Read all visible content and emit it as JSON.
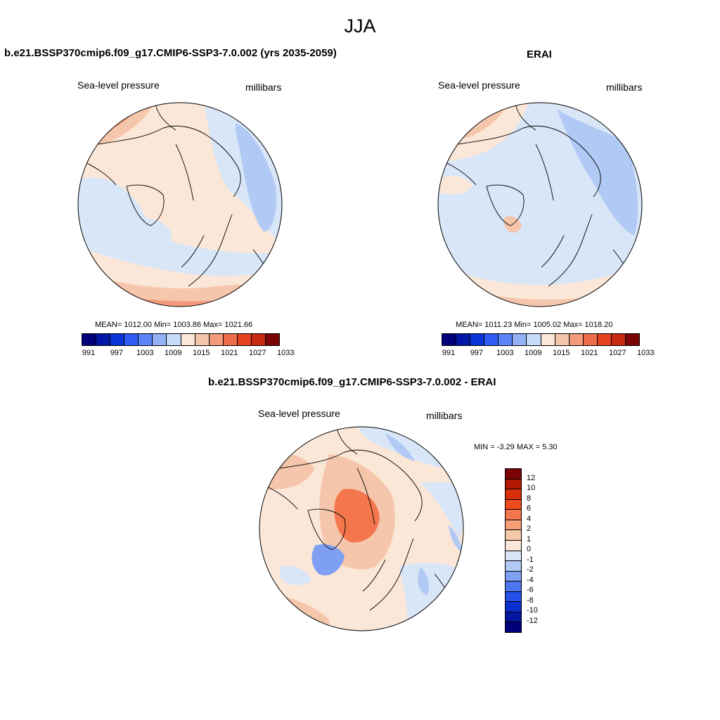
{
  "figure": {
    "season": "JJA",
    "panels": [
      {
        "title": "b.e21.BSSP370cmip6.f09_g17.CMIP6-SSP3-7.0.002 (yrs 2035-2059)",
        "variable": "Sea-level pressure",
        "units": "millibars",
        "stats": "MEAN= 1012.00   Min= 1003.86   Max= 1021.66"
      },
      {
        "title": "ERAI",
        "variable": "Sea-level pressure",
        "units": "millibars",
        "stats": "MEAN= 1011.23   Min= 1005.02   Max= 1018.20"
      },
      {
        "title": "b.e21.BSSP370cmip6.f09_g17.CMIP6-SSP3-7.0.002 - ERAI",
        "variable": "Sea-level pressure",
        "units": "millibars",
        "stats": "MIN =  -3.29 MAX =   5.30"
      }
    ],
    "abs_colorbar": {
      "colors": [
        "#00007a",
        "#0017a8",
        "#0a35d6",
        "#2f5cf5",
        "#5b85f7",
        "#93b2f5",
        "#c6dbf8",
        "#fbe7d7",
        "#f6c6ac",
        "#f29a7a",
        "#ee6e4a",
        "#e6411f",
        "#c62810",
        "#7a0403"
      ],
      "labels": [
        "991",
        "997",
        "1003",
        "1009",
        "1015",
        "1021",
        "1027",
        "1033"
      ]
    },
    "diff_colorbar": {
      "colors": [
        "#7a0403",
        "#b21a06",
        "#d8300b",
        "#f04b1f",
        "#f3764c",
        "#f5a077",
        "#f7c8a8",
        "#fbe7d7",
        "#d8e6f8",
        "#b1c9f5",
        "#7f9ff2",
        "#4e75f0",
        "#2550ea",
        "#0a2fd0",
        "#0417a0",
        "#00007a"
      ],
      "labels": [
        "12",
        "10",
        "8",
        "6",
        "4",
        "2",
        "1",
        "0",
        "-1",
        "-2",
        "-4",
        "-6",
        "-8",
        "-10",
        "-12"
      ]
    }
  }
}
